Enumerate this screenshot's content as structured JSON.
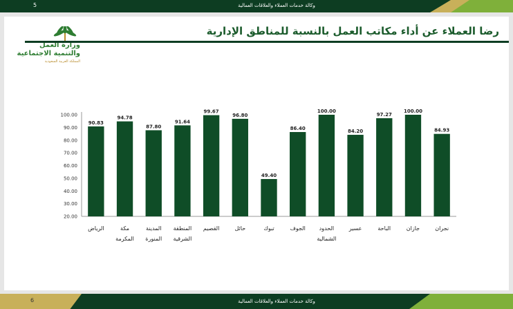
{
  "header": {
    "page_number": "5",
    "department": "وكالة خدمات العملاء والعلاقات العمالية"
  },
  "footer": {
    "page_number": "6",
    "department": "وكالة خدمات العملاء والعلاقات العمالية"
  },
  "logo": {
    "line1": "وزارة العمل",
    "line2": "والتنمية الاجتماعية",
    "line3": "المملكة العربية السعودية"
  },
  "slide": {
    "title": "رضا العملاء عن أداء مكاتب العمل بالنسبة للمناطق الإدارية"
  },
  "colors": {
    "bar": "#0f4d27",
    "title": "#1b5b2c",
    "dark_band": "#0d3d22",
    "gold": "#c8b05a",
    "lime": "#7fb03a"
  },
  "chart_data": {
    "type": "bar",
    "categories": [
      [
        "الرياض"
      ],
      [
        "مكة",
        "المكرمة"
      ],
      [
        "المدينة",
        "المنورة"
      ],
      [
        "المنطقة",
        "الشرقية"
      ],
      [
        "القصيم"
      ],
      [
        "حائل"
      ],
      [
        "تبوك"
      ],
      [
        "الجوف"
      ],
      [
        "الحدود",
        "الشمالية"
      ],
      [
        "عسير"
      ],
      [
        "الباحة"
      ],
      [
        "جازان"
      ],
      [
        "نجران"
      ]
    ],
    "values": [
      90.83,
      94.78,
      87.8,
      91.64,
      99.67,
      96.8,
      49.4,
      86.4,
      100.0,
      84.2,
      97.27,
      100.0,
      84.93
    ],
    "value_labels": [
      "90.83",
      "94.78",
      "87.80",
      "91.64",
      "99.67",
      "96.80",
      "49.40",
      "86.40",
      "100.00",
      "84.20",
      "97.27",
      "100.00",
      "84.93"
    ],
    "ylim": [
      20,
      100
    ],
    "yticks": [
      "20.00",
      "30.00",
      "40.00",
      "50.00",
      "60.00",
      "70.00",
      "80.00",
      "90.00",
      "100.00"
    ],
    "grid": false,
    "legend": "none"
  }
}
